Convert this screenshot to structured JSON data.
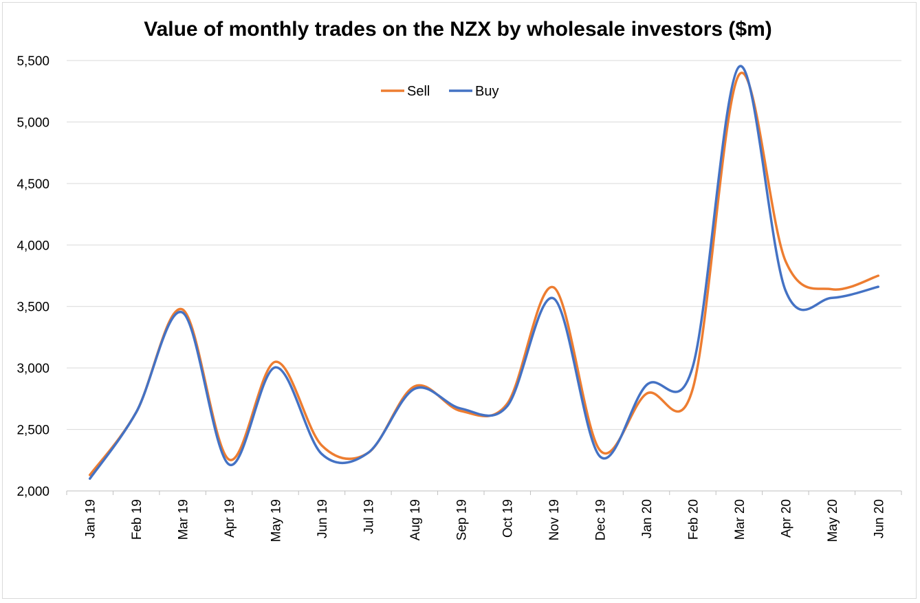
{
  "chart_data": {
    "type": "line",
    "title": "Value of monthly trades on the NZX by wholesale investors ($m)",
    "xlabel": "",
    "ylabel": "",
    "categories": [
      "Jan 19",
      "Feb 19",
      "Mar 19",
      "Apr 19",
      "May 19",
      "Jun 19",
      "Jul 19",
      "Aug 19",
      "Sep 19",
      "Oct 19",
      "Nov 19",
      "Dec 19",
      "Jan 20",
      "Feb 20",
      "Mar 20",
      "Apr 20",
      "May 20",
      "Jun 20"
    ],
    "ylim": [
      2000,
      5500
    ],
    "yticks": [
      2000,
      2500,
      3000,
      3500,
      4000,
      4500,
      5000,
      5500
    ],
    "ytick_labels": [
      "2,000",
      "2,500",
      "3,000",
      "3,500",
      "4,000",
      "4,500",
      "5,000",
      "5,500"
    ],
    "grid": "horizontal",
    "legend_position": "top",
    "series": [
      {
        "name": "Sell",
        "color": "#ED7D31",
        "values": [
          2130,
          2640,
          3475,
          2255,
          3050,
          2370,
          2310,
          2850,
          2650,
          2710,
          3655,
          2330,
          2790,
          2830,
          5385,
          3870,
          3640,
          3750
        ]
      },
      {
        "name": "Buy",
        "color": "#4472C4",
        "values": [
          2100,
          2640,
          3450,
          2215,
          3005,
          2300,
          2310,
          2830,
          2670,
          2690,
          3565,
          2280,
          2860,
          3010,
          5450,
          3630,
          3570,
          3660
        ]
      }
    ]
  }
}
